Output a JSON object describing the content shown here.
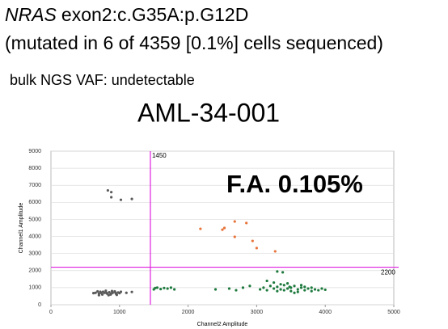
{
  "chart_data": {
    "type": "scatter",
    "title_gene": "NRAS",
    "title_variant": "exon2:c.G35A:p.G12D",
    "subtitle": "(mutated in 6 of 4359 [0.1%] cells sequenced)",
    "note": "bulk NGS VAF: undetectable",
    "sample": "AML-34-001",
    "annotation": "F.A. 0.105%",
    "x_label": "Channel2 Amplitude",
    "y_label": "Channel1 Amplitude",
    "xlim": [
      0,
      5000
    ],
    "ylim": [
      0,
      9000
    ],
    "xticks": [
      0,
      1000,
      2000,
      3000,
      4000,
      5000
    ],
    "yticks": [
      0,
      1000,
      2000,
      3000,
      4000,
      5000,
      6000,
      7000,
      8000,
      9000
    ],
    "grid": true,
    "x_threshold": 1450,
    "y_threshold": 2200,
    "threshold_color": "#e020e0",
    "series": [
      {
        "color": "#5a5a5a",
        "x": [
          650,
          700,
          720,
          750,
          780,
          800,
          820,
          850,
          870,
          900,
          930,
          950,
          980,
          1000,
          680,
          760,
          840,
          890,
          960,
          1020,
          700,
          620,
          1100,
          1180,
          730,
          810,
          880,
          940
        ],
        "values": [
          700,
          650,
          760,
          600,
          700,
          820,
          650,
          730,
          600,
          700,
          780,
          640,
          720,
          680,
          780,
          760,
          560,
          800,
          580,
          760,
          560,
          680,
          700,
          750,
          700,
          690,
          660,
          710
        ]
      },
      {
        "color": "#1e7a3e",
        "x": [
          3050,
          3100,
          3150,
          3200,
          3250,
          3300,
          3300,
          3350,
          3400,
          3400,
          3450,
          3500,
          3500,
          3550,
          3600,
          3600,
          3650,
          3700,
          3700,
          3750,
          3800,
          3800,
          3850,
          3900,
          3950,
          4000,
          3350,
          3450,
          3250,
          3300,
          3380,
          2800,
          2600,
          2400,
          2900,
          2700,
          3150,
          3550,
          3650,
          3480
        ],
        "values": [
          900,
          1000,
          850,
          1100,
          950,
          800,
          1050,
          900,
          1150,
          850,
          950,
          1000,
          800,
          1100,
          900,
          750,
          1000,
          850,
          1050,
          950,
          800,
          1000,
          900,
          850,
          950,
          880,
          1200,
          1250,
          1300,
          1950,
          1900,
          1000,
          950,
          900,
          1100,
          850,
          1400,
          700,
          1150,
          1050
        ]
      },
      {
        "color": "#1e7a3e",
        "x": [
          1500,
          1550,
          1600,
          1650,
          1700,
          1750,
          1800,
          1520
        ],
        "values": [
          900,
          1000,
          920,
          980,
          950,
          1000,
          900,
          980
        ]
      },
      {
        "color": "#e8743b",
        "x": [
          2180,
          2500,
          2530,
          2680,
          2850,
          2680,
          2940,
          3000,
          3270
        ],
        "values": [
          4450,
          4400,
          4500,
          4880,
          4790,
          3980,
          3740,
          3320,
          3130
        ]
      },
      {
        "color": "#5a5a5a",
        "x": [
          830,
          880,
          880,
          1020,
          1180
        ],
        "values": [
          6700,
          6600,
          6300,
          6150,
          6200
        ]
      }
    ]
  }
}
